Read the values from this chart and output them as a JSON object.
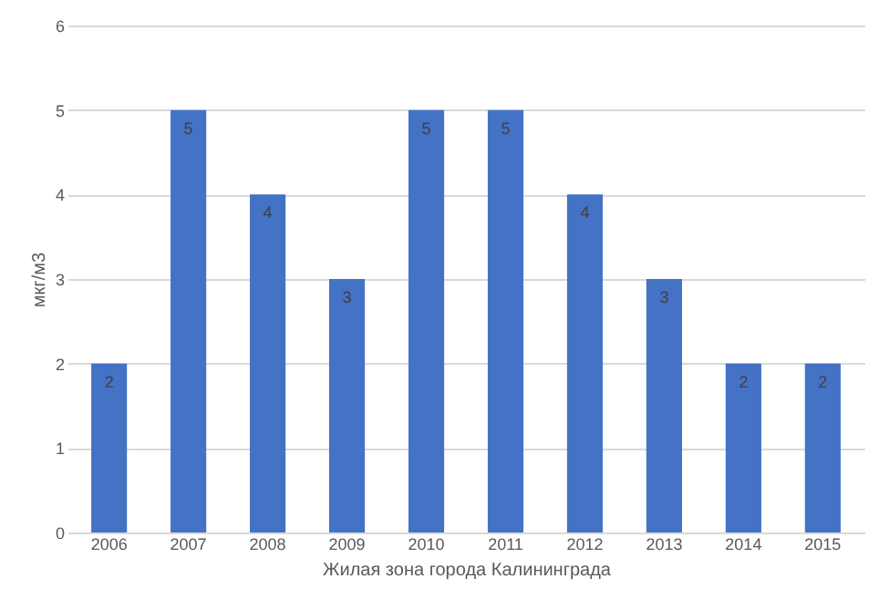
{
  "chart_data": {
    "type": "bar",
    "categories": [
      "2006",
      "2007",
      "2008",
      "2009",
      "2010",
      "2011",
      "2012",
      "2013",
      "2014",
      "2015"
    ],
    "values": [
      2,
      5,
      4,
      3,
      5,
      5,
      4,
      3,
      2,
      2
    ],
    "color": "#4472c4",
    "xlabel": "Жилая зона города Калининграда",
    "ylabel": "мкг/м3",
    "ylim": [
      0,
      6
    ],
    "yticks": [
      0,
      1,
      2,
      3,
      4,
      5,
      6
    ],
    "grid": "y",
    "data_labels": true
  }
}
